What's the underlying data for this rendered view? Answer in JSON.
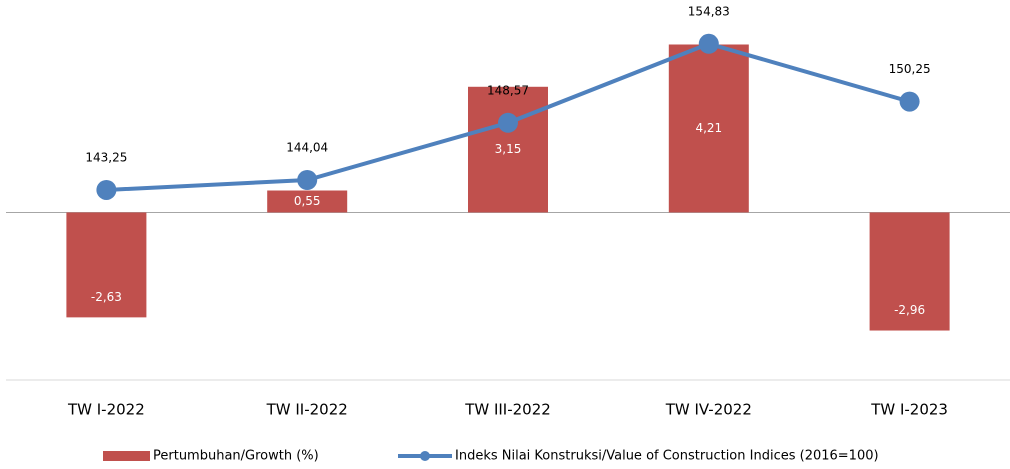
{
  "chart_data": {
    "type": "bar",
    "categories": [
      "TW I-2022",
      "TW II-2022",
      "TW III-2022",
      "TW IV-2022",
      "TW I-2023"
    ],
    "series": [
      {
        "name": "Pertumbuhan/Growth (%)",
        "type": "bar",
        "color": "#c0504d",
        "values": [
          -2.63,
          0.55,
          3.15,
          4.21,
          -2.96
        ],
        "value_labels": [
          "-2,63",
          "0,55",
          "3,15",
          "4,21",
          "-2,96"
        ]
      },
      {
        "name": "Indeks Nilai Konstruksi/Value of Construction Indices (2016=100)",
        "type": "line",
        "axis": "y2",
        "color": "#4f81bd",
        "values": [
          143.25,
          144.04,
          148.57,
          154.83,
          150.25
        ],
        "value_labels": [
          "143,25",
          "144,04",
          "148,57",
          "154,83",
          "150,25"
        ]
      }
    ],
    "ylim": [
      -4.2,
      5.2
    ],
    "y2lim": [
      128.2,
      157.9
    ],
    "legend": "bottom"
  }
}
